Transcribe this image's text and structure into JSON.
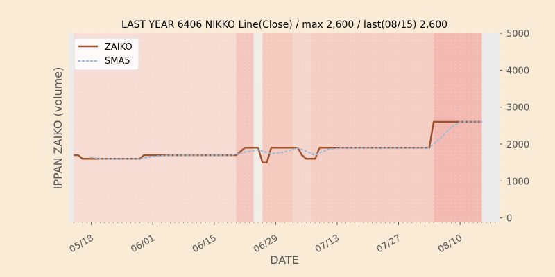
{
  "chart_data": {
    "type": "line",
    "title": "LAST YEAR 6406 NIKKO Line(Close) / max 2,600 / last(08/15) 2,600",
    "xlabel": "DATE",
    "ylabel": "IPPAN ZAIKO (volume)",
    "y_axis_side": "right",
    "ylim": [
      -100,
      5000
    ],
    "yticks": [
      0,
      1000,
      2000,
      3000,
      4000,
      5000
    ],
    "xrange": [
      "2023-05-13",
      "2023-08-19"
    ],
    "xticks": [
      {
        "date": "2023-05-18",
        "label": "05/18"
      },
      {
        "date": "2023-06-01",
        "label": "06/01"
      },
      {
        "date": "2023-06-15",
        "label": "06/15"
      },
      {
        "date": "2023-06-29",
        "label": "06/29"
      },
      {
        "date": "2023-07-13",
        "label": "07/13"
      },
      {
        "date": "2023-07-27",
        "label": "07/27"
      },
      {
        "date": "2023-08-10",
        "label": "08/10"
      }
    ],
    "legend_position": "top-left",
    "grid": true,
    "series": [
      {
        "name": "ZAIKO",
        "color": "#a0522d",
        "style": "solid",
        "points": [
          [
            "2023-05-14",
            1700
          ],
          [
            "2023-05-15",
            1700
          ],
          [
            "2023-05-16",
            1600
          ],
          [
            "2023-05-25",
            1600
          ],
          [
            "2023-05-29",
            1600
          ],
          [
            "2023-05-30",
            1700
          ],
          [
            "2023-06-19",
            1700
          ],
          [
            "2023-06-20",
            1700
          ],
          [
            "2023-06-22",
            1900
          ],
          [
            "2023-06-25",
            1900
          ],
          [
            "2023-06-26",
            1500
          ],
          [
            "2023-06-27",
            1500
          ],
          [
            "2023-06-28",
            1900
          ],
          [
            "2023-07-04",
            1900
          ],
          [
            "2023-07-05",
            1700
          ],
          [
            "2023-07-06",
            1600
          ],
          [
            "2023-07-08",
            1600
          ],
          [
            "2023-07-09",
            1900
          ],
          [
            "2023-08-03",
            1900
          ],
          [
            "2023-08-04",
            2600
          ],
          [
            "2023-08-15",
            2600
          ]
        ]
      },
      {
        "name": "SMA5",
        "color": "#9bbbd9",
        "style": "dotted",
        "points": [
          [
            "2023-05-18",
            1640
          ],
          [
            "2023-05-20",
            1600
          ],
          [
            "2023-05-29",
            1600
          ],
          [
            "2023-06-01",
            1660
          ],
          [
            "2023-06-05",
            1700
          ],
          [
            "2023-06-19",
            1700
          ],
          [
            "2023-06-22",
            1780
          ],
          [
            "2023-06-25",
            1840
          ],
          [
            "2023-06-28",
            1740
          ],
          [
            "2023-07-01",
            1780
          ],
          [
            "2023-07-04",
            1900
          ],
          [
            "2023-07-08",
            1700
          ],
          [
            "2023-07-11",
            1860
          ],
          [
            "2023-07-14",
            1900
          ],
          [
            "2023-08-03",
            1900
          ],
          [
            "2023-08-05",
            2100
          ],
          [
            "2023-08-08",
            2450
          ],
          [
            "2023-08-10",
            2600
          ],
          [
            "2023-08-15",
            2600
          ]
        ]
      }
    ],
    "background_bands": [
      {
        "from": "2023-05-13",
        "to": "2023-05-14",
        "color": "#ebebeb"
      },
      {
        "from": "2023-05-14",
        "to": "2023-06-20",
        "color": "#f6dcd3"
      },
      {
        "from": "2023-06-20",
        "to": "2023-06-24",
        "color": "#f3c7bd"
      },
      {
        "from": "2023-06-24",
        "to": "2023-06-26",
        "color": "#f2ece6"
      },
      {
        "from": "2023-06-26",
        "to": "2023-07-03",
        "color": "#f4cabf"
      },
      {
        "from": "2023-07-03",
        "to": "2023-07-07",
        "color": "#f5d6cc"
      },
      {
        "from": "2023-07-07",
        "to": "2023-08-04",
        "color": "#f4cdc3"
      },
      {
        "from": "2023-08-04",
        "to": "2023-08-15",
        "color": "#f3b9b0"
      },
      {
        "from": "2023-08-15",
        "to": "2023-08-19",
        "color": "#ebebeb"
      }
    ]
  }
}
